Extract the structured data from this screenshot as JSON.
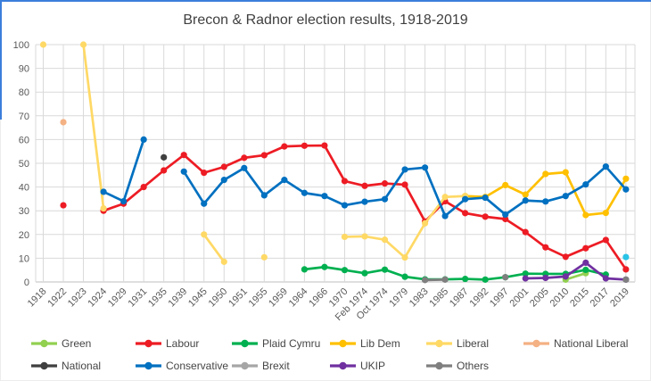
{
  "window": {
    "edge_color": "#3c7edb"
  },
  "chart_data": {
    "type": "line",
    "title": "Brecon & Radnor election results, 1918-2019",
    "xlabel": "",
    "ylabel": "",
    "ylim": [
      0,
      100
    ],
    "yticks": [
      0,
      10,
      20,
      30,
      40,
      50,
      60,
      70,
      80,
      90,
      100
    ],
    "grid": "both",
    "legend_position": "bottom",
    "categories": [
      "1918",
      "1922",
      "1923",
      "1924",
      "1929",
      "1931",
      "1935",
      "1939",
      "1945",
      "1950",
      "1951",
      "1955",
      "1959",
      "1964",
      "1966",
      "1970",
      "Feb 1974",
      "Oct 1974",
      "1979",
      "1983",
      "1985",
      "1987",
      "1992",
      "1997",
      "2001",
      "2005",
      "2010",
      "2015",
      "2017",
      "2019"
    ],
    "series": [
      {
        "name": "Green",
        "color": "#92d050",
        "values": [
          null,
          null,
          null,
          null,
          null,
          null,
          null,
          null,
          null,
          null,
          null,
          null,
          null,
          null,
          null,
          null,
          null,
          null,
          null,
          null,
          null,
          null,
          null,
          null,
          null,
          null,
          1,
          3.7,
          null,
          null
        ]
      },
      {
        "name": "Labour",
        "color": "#ed1c24",
        "values": [
          null,
          32.3,
          null,
          30,
          33,
          40,
          47,
          53.5,
          46,
          48.5,
          52.3,
          53.4,
          57.1,
          57.4,
          57.5,
          42.5,
          40.5,
          41.5,
          41,
          25.5,
          34,
          29,
          27.5,
          26.5,
          21,
          14.6,
          10.6,
          14.2,
          17.7,
          5.3
        ]
      },
      {
        "name": "Plaid Cymru",
        "color": "#00b050",
        "values": [
          null,
          null,
          null,
          null,
          null,
          null,
          null,
          null,
          null,
          null,
          null,
          null,
          null,
          5.3,
          6.3,
          5,
          3.7,
          5.2,
          2.2,
          1.1,
          1.1,
          1.3,
          1,
          2,
          3.5,
          3.4,
          3.4,
          5.1,
          3.1,
          null
        ]
      },
      {
        "name": "Lib Dem",
        "color": "#ffc000",
        "values": [
          null,
          null,
          null,
          null,
          null,
          null,
          null,
          null,
          null,
          null,
          null,
          null,
          null,
          null,
          null,
          null,
          null,
          null,
          null,
          null,
          null,
          36.2,
          35.8,
          40.8,
          36.8,
          45.5,
          46.2,
          28.2,
          29.1,
          43.5
        ]
      },
      {
        "name": "Liberal",
        "color": "#ffd966",
        "values": [
          100,
          null,
          100,
          31,
          null,
          null,
          null,
          null,
          20,
          8.5,
          null,
          10.4,
          null,
          null,
          null,
          19,
          19.2,
          17.8,
          10.3,
          24.7,
          35.8,
          36.2,
          null,
          null,
          null,
          null,
          null,
          null,
          null,
          null
        ]
      },
      {
        "name": "National Liberal",
        "color": "#f4b183",
        "values": [
          null,
          67.3,
          null,
          null,
          null,
          null,
          null,
          null,
          null,
          null,
          null,
          null,
          null,
          null,
          null,
          null,
          null,
          null,
          null,
          null,
          null,
          null,
          null,
          null,
          null,
          null,
          null,
          null,
          null,
          null
        ]
      },
      {
        "name": "National",
        "color": "#3f3f3f",
        "values": [
          null,
          null,
          null,
          null,
          null,
          null,
          52.5,
          null,
          null,
          null,
          null,
          null,
          null,
          null,
          null,
          null,
          null,
          null,
          null,
          null,
          null,
          null,
          null,
          null,
          null,
          null,
          null,
          null,
          null,
          null
        ]
      },
      {
        "name": "Conservative",
        "color": "#0070c0",
        "values": [
          null,
          null,
          null,
          38,
          34,
          60,
          null,
          46.5,
          33,
          43,
          48,
          36.5,
          43,
          37.5,
          36.2,
          32.3,
          33.8,
          34.9,
          47.4,
          48.2,
          27.8,
          34.9,
          35.5,
          28.4,
          34.3,
          33.9,
          36.2,
          41.1,
          48.6,
          39
        ]
      },
      {
        "name": "Brexit",
        "color": "#29c3e6",
        "legend_color": "#a6a6a6",
        "values": [
          null,
          null,
          null,
          null,
          null,
          null,
          null,
          null,
          null,
          null,
          null,
          null,
          null,
          null,
          null,
          null,
          null,
          null,
          null,
          null,
          null,
          null,
          null,
          null,
          null,
          null,
          null,
          null,
          null,
          10.5
        ]
      },
      {
        "name": "UKIP",
        "color": "#7030a0",
        "values": [
          null,
          null,
          null,
          null,
          null,
          null,
          null,
          null,
          null,
          null,
          null,
          null,
          null,
          null,
          null,
          null,
          null,
          null,
          null,
          null,
          null,
          null,
          null,
          null,
          1.5,
          1.7,
          2.3,
          8.1,
          1.5,
          1
        ]
      },
      {
        "name": "Others",
        "color": "#7f7f7f",
        "values": [
          null,
          null,
          null,
          null,
          null,
          null,
          null,
          null,
          null,
          null,
          null,
          null,
          null,
          null,
          null,
          null,
          null,
          null,
          null,
          0.8,
          1,
          null,
          null,
          2,
          null,
          null,
          null,
          null,
          null,
          1
        ]
      }
    ],
    "legend_rows": [
      [
        "Green",
        "Labour",
        "Plaid Cymru",
        "Lib Dem",
        "Liberal",
        "National Liberal"
      ],
      [
        "National",
        "Conservative",
        "Brexit",
        "UKIP",
        "Others"
      ]
    ]
  }
}
